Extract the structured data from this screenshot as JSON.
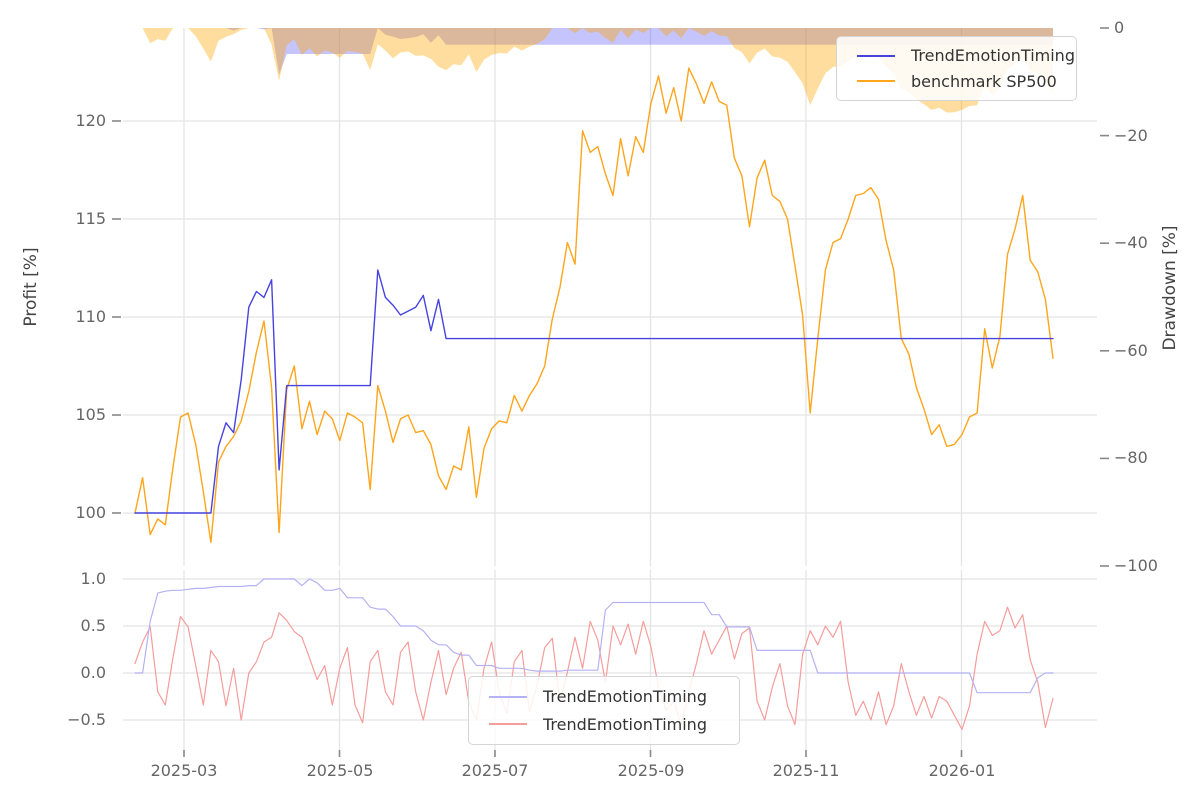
{
  "figure": {
    "background": "#ffffff"
  },
  "colors": {
    "strategy_line": "#4643df",
    "benchmark_line": "#ffa51c",
    "strategy_dd_fill": "rgba(90,85,245,0.35)",
    "benchmark_dd_fill": "rgba(255,166,0,0.38)",
    "signal_blue_line": "#b4b2f4",
    "signal_red_line": "#f59d9b",
    "grid": "#e4e4e4",
    "tick_mark": "#888888",
    "tick_text": "#666666"
  },
  "main_axes": {
    "ylabel_left": "Profit [%]",
    "ylabel_right": "Drawdown [%]",
    "yticks_left": [
      "100",
      "105",
      "110",
      "115",
      "120"
    ],
    "yticks_right": [
      "0",
      "−20",
      "−40",
      "−60",
      "−80",
      "−100"
    ],
    "legend": {
      "entries": [
        {
          "label": "TrendEmotionTiming",
          "color": "#4643df"
        },
        {
          "label": "benchmark SP500",
          "color": "#ffa51c"
        }
      ]
    }
  },
  "signal_axes": {
    "yticks": [
      "1.0",
      "0.5",
      "0.0",
      "−0.5"
    ],
    "xticks": [
      "2025-03",
      "2025-05",
      "2025-07",
      "2025-09",
      "2025-11",
      "2026-01"
    ],
    "legend": {
      "entries": [
        {
          "label": "TrendEmotionTiming",
          "color": "#b4b2f4"
        },
        {
          "label": "TrendEmotionTiming",
          "color": "#f59d9b"
        }
      ]
    }
  },
  "chart_data": [
    {
      "type": "line",
      "title": "",
      "ylabel": "Profit [%]",
      "ylabel_right": "Drawdown [%]",
      "x_start_date": "2025-02-10",
      "x_step_days": 3,
      "xtick_labels": [
        "2025-03",
        "2025-05",
        "2025-07",
        "2025-09",
        "2025-11",
        "2026-01"
      ],
      "ylim_profit": [
        97.2,
        124.8
      ],
      "ylim_drawdown": [
        -100,
        0
      ],
      "grid": true,
      "legend_position": "upper right",
      "series": [
        {
          "name": "TrendEmotionTiming",
          "axis": "profit",
          "color": "#4643df",
          "values": [
            100,
            100,
            100,
            100,
            100,
            100,
            100,
            100,
            100,
            100,
            100,
            103.4,
            104.6,
            104.1,
            106.8,
            110.5,
            111.3,
            111.0,
            111.9,
            102.2,
            106.5,
            106.5,
            106.5,
            106.5,
            106.5,
            106.5,
            106.5,
            106.5,
            106.5,
            106.5,
            106.5,
            106.5,
            112.4,
            111.0,
            110.6,
            110.1,
            110.3,
            110.5,
            111.1,
            109.3,
            110.9,
            108.9,
            108.9,
            108.9,
            108.9,
            108.9,
            108.9,
            108.9,
            108.9,
            108.9,
            108.9,
            108.9,
            108.9,
            108.9,
            108.9,
            108.9,
            108.9,
            108.9,
            108.9,
            108.9,
            108.9,
            108.9,
            108.9,
            108.9,
            108.9,
            108.9,
            108.9,
            108.9,
            108.9,
            108.9,
            108.9,
            108.9,
            108.9,
            108.9,
            108.9,
            108.9,
            108.9,
            108.9,
            108.9,
            108.9,
            108.9,
            108.9,
            108.9,
            108.9,
            108.9,
            108.9,
            108.9,
            108.9,
            108.9,
            108.9,
            108.9,
            108.9,
            108.9,
            108.9,
            108.9,
            108.9,
            108.9,
            108.9,
            108.9,
            108.9,
            108.9,
            108.9,
            108.9,
            108.9,
            108.9,
            108.9,
            108.9,
            108.9,
            108.9,
            108.9,
            108.9,
            108.9,
            108.9,
            108.9,
            108.9,
            108.9,
            108.9,
            108.9,
            108.9,
            108.9,
            108.9,
            108.9
          ]
        },
        {
          "name": "benchmark SP500",
          "axis": "profit",
          "color": "#ffa51c",
          "values": [
            100.0,
            101.8,
            98.9,
            99.7,
            99.4,
            102.3,
            104.9,
            105.1,
            103.5,
            101.1,
            98.5,
            102.6,
            103.4,
            103.9,
            104.7,
            106.2,
            108.2,
            109.8,
            106.4,
            99.0,
            106.3,
            107.5,
            104.3,
            105.7,
            104.0,
            105.2,
            104.8,
            103.7,
            105.1,
            104.9,
            104.6,
            101.2,
            106.5,
            105.2,
            103.6,
            104.8,
            105.0,
            104.1,
            104.2,
            103.5,
            101.9,
            101.2,
            102.4,
            102.2,
            104.4,
            100.8,
            103.3,
            104.3,
            104.7,
            104.6,
            106.0,
            105.2,
            106.0,
            106.6,
            107.5,
            109.9,
            111.5,
            113.8,
            112.7,
            119.5,
            118.4,
            118.7,
            117.3,
            116.2,
            119.1,
            117.2,
            119.2,
            118.4,
            120.9,
            122.3,
            120.4,
            121.7,
            120.0,
            122.7,
            121.9,
            120.9,
            122.0,
            121.0,
            120.8,
            118.1,
            117.2,
            114.6,
            117.1,
            118.0,
            116.2,
            115.9,
            115.0,
            112.6,
            110.1,
            105.1,
            108.9,
            112.4,
            113.8,
            114.0,
            115.0,
            116.2,
            116.3,
            116.6,
            116.0,
            113.9,
            112.4,
            108.9,
            108.1,
            106.4,
            105.3,
            104.0,
            104.5,
            103.4,
            103.5,
            104.0,
            104.9,
            105.1,
            109.4,
            107.4,
            109.0,
            113.2,
            114.5,
            116.2,
            112.9,
            112.3,
            110.9,
            107.9
          ]
        },
        {
          "name": "TrendEmotionTiming drawdown",
          "axis": "drawdown",
          "style": "area",
          "color": "rgba(90,85,245,0.35)",
          "derived_from": "TrendEmotionTiming",
          "note": "percent decline from running maximum of the profit curve"
        },
        {
          "name": "benchmark SP500 drawdown",
          "axis": "drawdown",
          "style": "area",
          "color": "rgba(255,166,0,0.38)",
          "derived_from": "benchmark SP500",
          "note": "percent decline from running maximum of the profit curve"
        }
      ]
    },
    {
      "type": "line",
      "title": "",
      "ylim": [
        -0.82,
        1.1
      ],
      "ytick_values": [
        1.0,
        0.5,
        0.0,
        -0.5
      ],
      "grid": true,
      "legend_position": "lower center",
      "series": [
        {
          "name": "TrendEmotionTiming",
          "color": "#b4b2f4",
          "values": [
            0,
            0,
            0.55,
            0.85,
            0.87,
            0.88,
            0.88,
            0.89,
            0.9,
            0.9,
            0.91,
            0.92,
            0.92,
            0.92,
            0.92,
            0.93,
            0.93,
            1.0,
            1.0,
            1.0,
            1.0,
            1.0,
            0.93,
            1.0,
            0.96,
            0.88,
            0.88,
            0.9,
            0.8,
            0.8,
            0.8,
            0.7,
            0.68,
            0.68,
            0.6,
            0.5,
            0.5,
            0.5,
            0.45,
            0.35,
            0.3,
            0.3,
            0.22,
            0.19,
            0.19,
            0.08,
            0.08,
            0.08,
            0.05,
            0.05,
            0.05,
            0.05,
            0.03,
            0.02,
            0.02,
            0.02,
            0.02,
            0.03,
            0.03,
            0.03,
            0.03,
            0.03,
            0.67,
            0.75,
            0.75,
            0.75,
            0.75,
            0.75,
            0.75,
            0.75,
            0.75,
            0.75,
            0.75,
            0.75,
            0.75,
            0.75,
            0.62,
            0.62,
            0.49,
            0.49,
            0.49,
            0.49,
            0.24,
            0.24,
            0.24,
            0.24,
            0.24,
            0.24,
            0.24,
            0.24,
            0.0,
            0.0,
            0.0,
            0.0,
            0.0,
            0.0,
            0.0,
            0.0,
            0.0,
            0.0,
            0.0,
            0.0,
            0.0,
            0.0,
            0.0,
            0.0,
            0.0,
            0.0,
            0.0,
            0.0,
            0.0,
            -0.21,
            -0.21,
            -0.21,
            -0.21,
            -0.21,
            -0.21,
            -0.21,
            -0.21,
            -0.05,
            0.0,
            0.0
          ]
        },
        {
          "name": "TrendEmotionTiming",
          "color": "#f59d9b",
          "values": [
            0.1,
            0.33,
            0.49,
            -0.2,
            -0.34,
            0.16,
            0.6,
            0.49,
            0.08,
            -0.34,
            0.24,
            0.12,
            -0.35,
            0.05,
            -0.5,
            0.0,
            0.12,
            0.33,
            0.38,
            0.64,
            0.56,
            0.44,
            0.38,
            0.16,
            -0.07,
            0.08,
            -0.34,
            0.05,
            0.27,
            -0.34,
            -0.53,
            0.12,
            0.24,
            -0.2,
            -0.34,
            0.22,
            0.33,
            -0.2,
            -0.5,
            -0.1,
            0.24,
            -0.23,
            0.05,
            0.22,
            -0.31,
            -0.5,
            0.05,
            0.33,
            -0.2,
            -0.43,
            0.12,
            0.24,
            -0.41,
            -0.13,
            0.27,
            0.37,
            -0.31,
            0.01,
            0.38,
            0.05,
            0.55,
            0.35,
            -0.1,
            0.5,
            0.3,
            0.52,
            0.2,
            0.55,
            0.28,
            -0.15,
            -0.4,
            -0.3,
            -0.55,
            -0.2,
            0.1,
            0.45,
            0.2,
            0.35,
            0.5,
            0.15,
            0.42,
            0.48,
            -0.3,
            -0.5,
            -0.15,
            0.1,
            -0.35,
            -0.55,
            0.2,
            0.45,
            0.3,
            0.5,
            0.38,
            0.55,
            -0.1,
            -0.45,
            -0.3,
            -0.5,
            -0.2,
            -0.55,
            -0.35,
            0.1,
            -0.2,
            -0.45,
            -0.25,
            -0.48,
            -0.25,
            -0.3,
            -0.45,
            -0.6,
            -0.35,
            0.2,
            0.55,
            0.4,
            0.45,
            0.7,
            0.48,
            0.62,
            0.14,
            -0.1,
            -0.58,
            -0.27
          ]
        }
      ]
    }
  ]
}
